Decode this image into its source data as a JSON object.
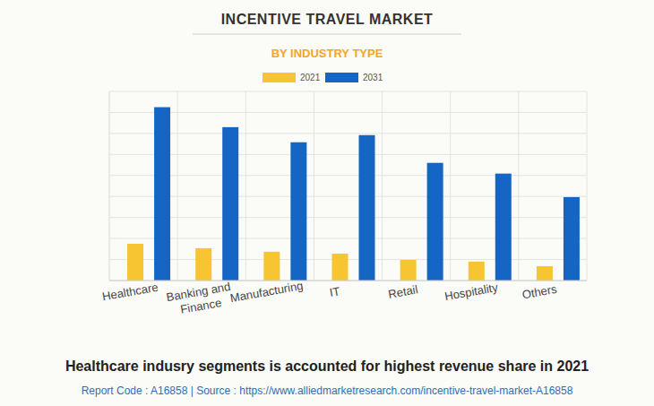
{
  "chart_data": {
    "type": "bar",
    "title": "INCENTIVE TRAVEL MARKET",
    "subtitle": "BY INDUSTRY TYPE",
    "categories": [
      "Healthcare",
      "Banking and Finance",
      "Manufacturing",
      "IT",
      "Retail",
      "Hospitality",
      "Others"
    ],
    "series": [
      {
        "name": "2021",
        "color": "#f7c531",
        "values": [
          1.75,
          1.54,
          1.37,
          1.28,
          0.98,
          0.9,
          0.68
        ]
      },
      {
        "name": "2031",
        "color": "#1565c4",
        "values": [
          8.25,
          7.3,
          6.58,
          6.92,
          5.6,
          5.09,
          3.97
        ]
      }
    ],
    "ylim": [
      0,
      9
    ],
    "yticks": [
      0,
      1,
      2,
      3,
      4,
      5,
      6,
      7,
      8,
      9
    ],
    "grid": true,
    "tick_labels": false,
    "legend": "top",
    "annotations": [
      "Healthcare indusry segments is accounted for highest revenue share in 2021",
      "Report Code : A16858  |  Source : https://www.alliedmarketresearch.com/incentive-travel-market-A16858"
    ]
  }
}
